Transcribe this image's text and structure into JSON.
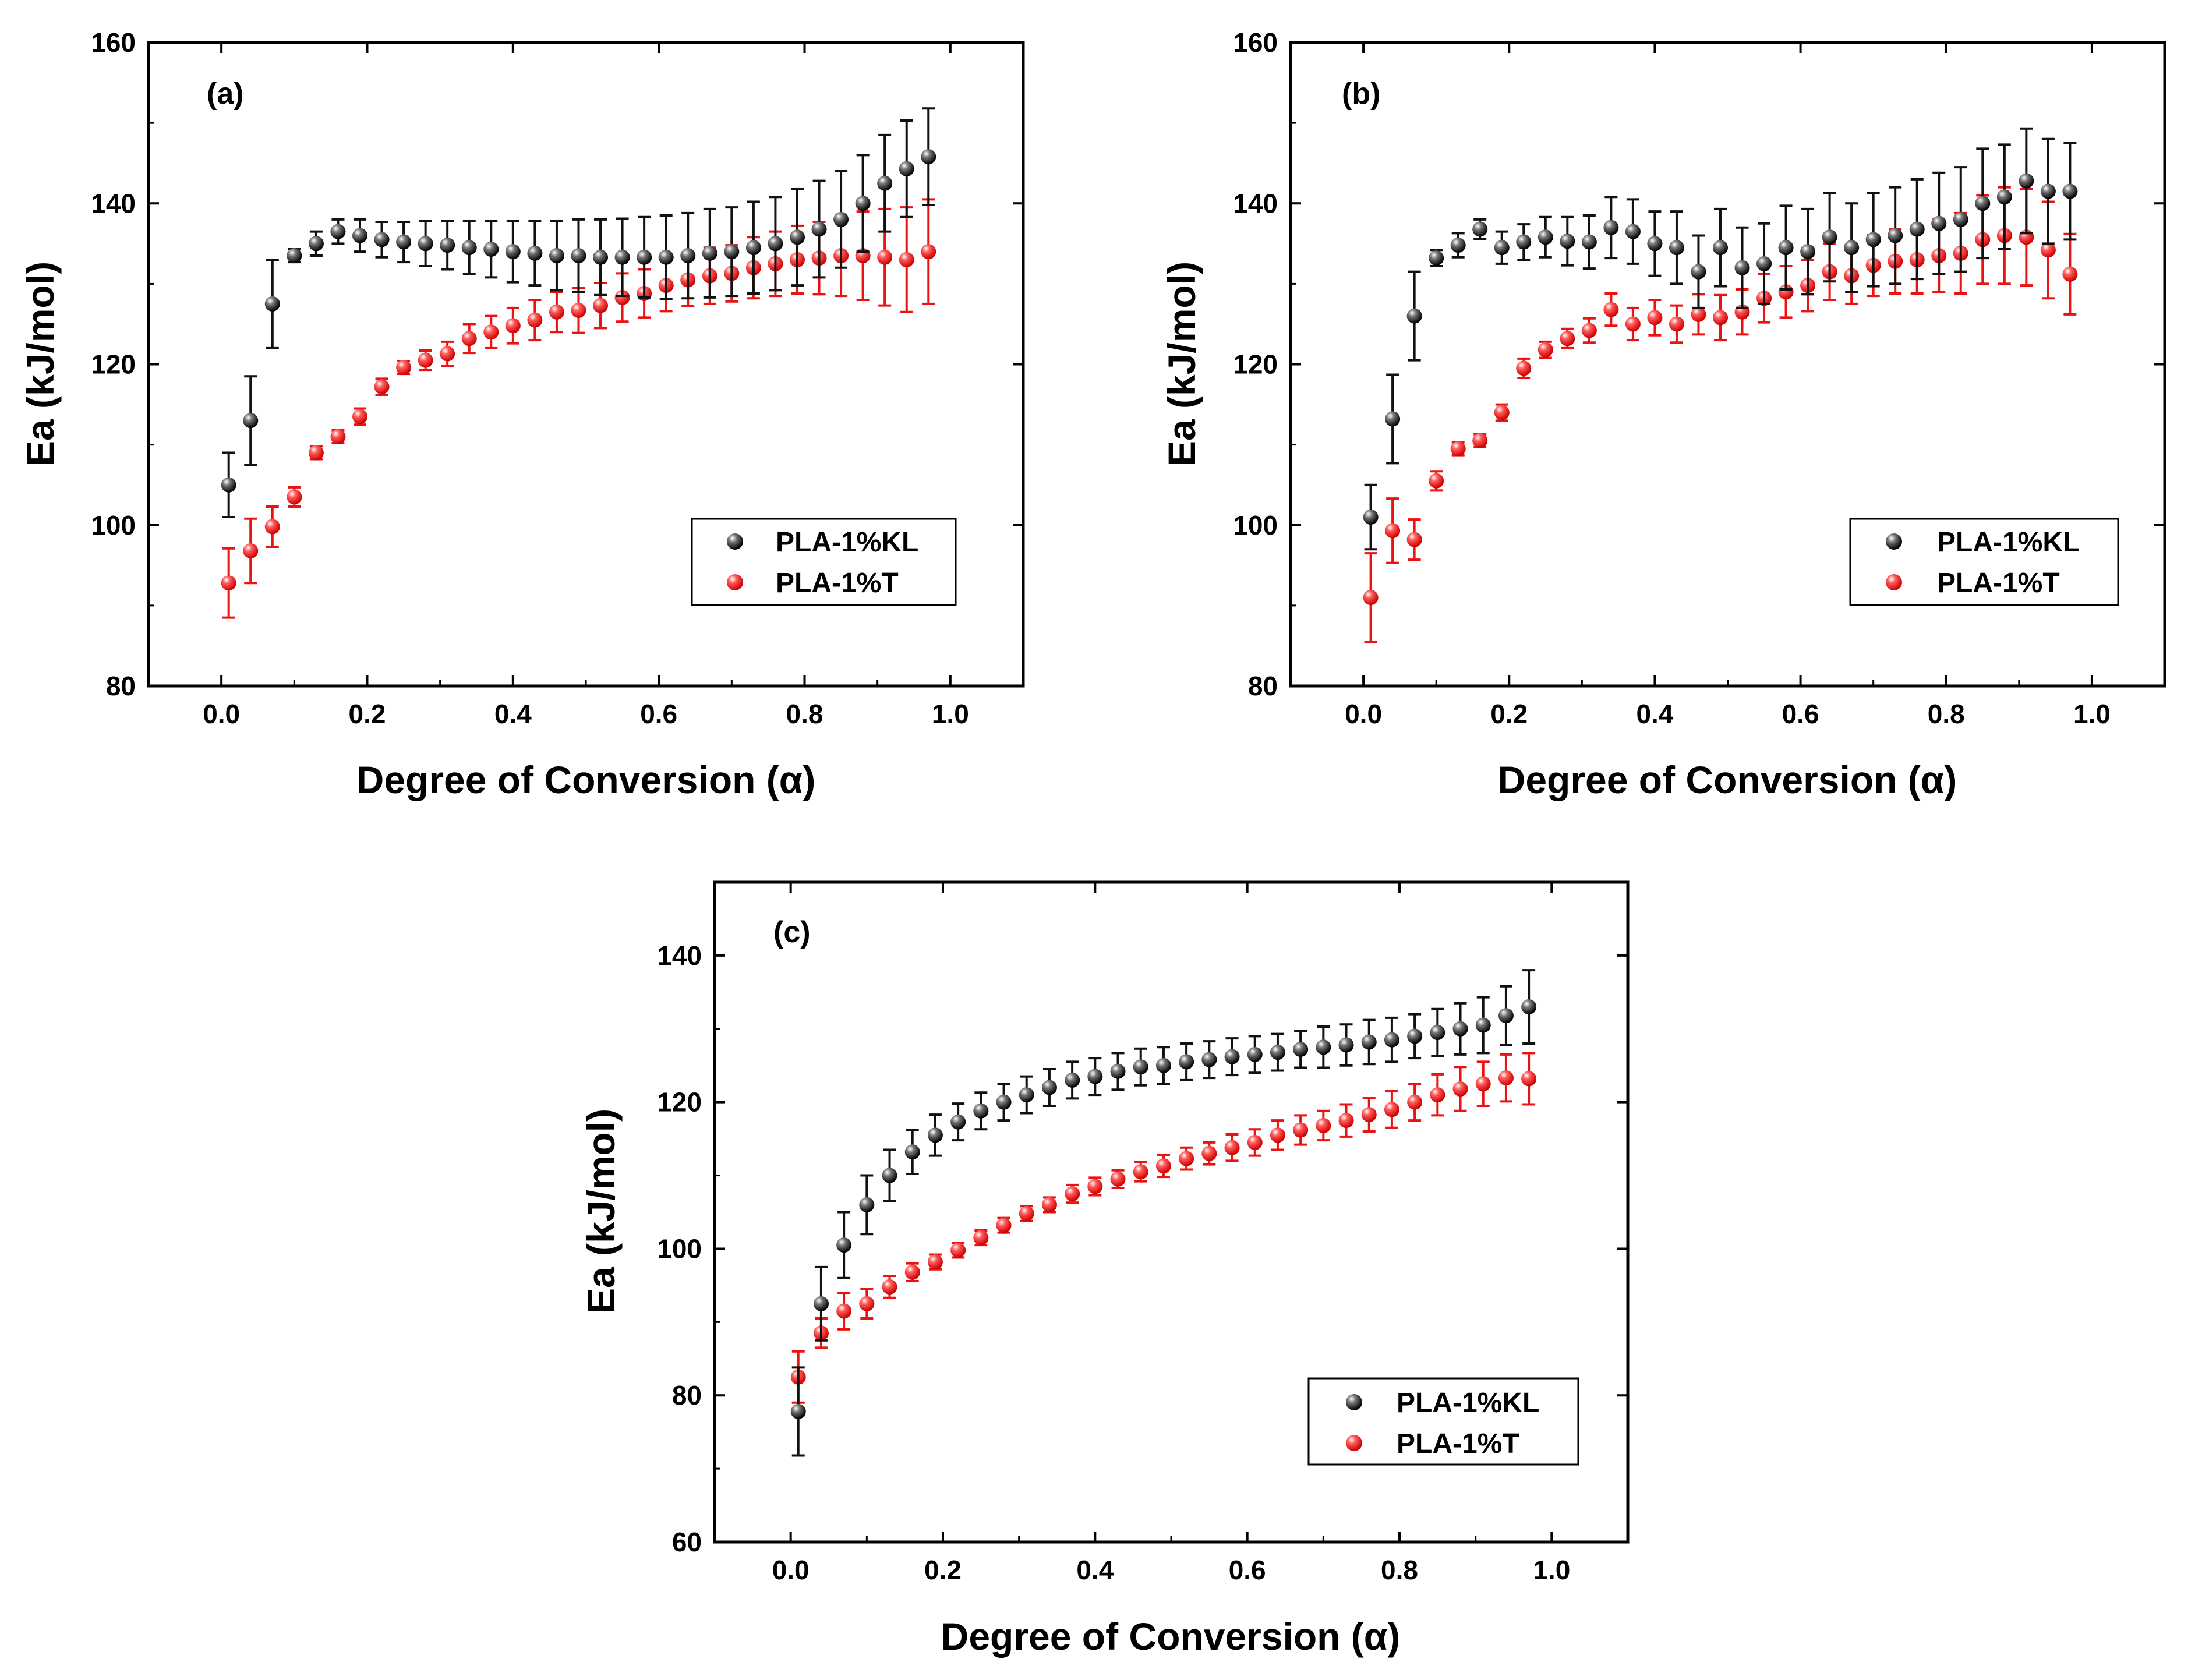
{
  "colors": {
    "series_black": "#111111",
    "series_red": "#ee1111",
    "axis": "#000000",
    "background": "#ffffff"
  },
  "chart_data": [
    {
      "type": "scatter",
      "panel_label": "(a)",
      "xlabel": "Degree of Conversion (α)",
      "ylabel": "Ea  (kJ/mol)",
      "xlim": [
        -0.1,
        1.1
      ],
      "ylim": [
        80,
        160
      ],
      "xticks": [
        "0.0",
        "0.2",
        "0.4",
        "0.6",
        "0.8",
        "1.0"
      ],
      "yticks": [
        "80",
        "100",
        "120",
        "140",
        "160"
      ],
      "legend_position": "bottom-right",
      "x": [
        0.01,
        0.04,
        0.07,
        0.1,
        0.13,
        0.16,
        0.19,
        0.22,
        0.25,
        0.28,
        0.31,
        0.34,
        0.37,
        0.4,
        0.43,
        0.46,
        0.49,
        0.52,
        0.55,
        0.58,
        0.61,
        0.64,
        0.67,
        0.7,
        0.73,
        0.76,
        0.79,
        0.82,
        0.85,
        0.88,
        0.91,
        0.94,
        0.97
      ],
      "series": [
        {
          "name": "PLA-1%KL",
          "color": "#111111",
          "values": [
            105.0,
            113.0,
            127.5,
            133.5,
            135.0,
            136.5,
            136.0,
            135.5,
            135.2,
            135.0,
            134.8,
            134.5,
            134.3,
            134.0,
            133.8,
            133.5,
            133.5,
            133.3,
            133.3,
            133.3,
            133.3,
            133.5,
            133.8,
            134.0,
            134.5,
            135.0,
            135.8,
            136.8,
            138.0,
            140.0,
            142.5,
            144.3,
            145.8
          ],
          "errors": [
            4.0,
            5.5,
            5.5,
            0.8,
            1.5,
            1.5,
            2.0,
            2.2,
            2.5,
            2.8,
            3.0,
            3.3,
            3.5,
            3.8,
            4.0,
            4.3,
            4.5,
            4.7,
            4.8,
            5.0,
            5.2,
            5.3,
            5.5,
            5.5,
            5.7,
            5.8,
            6.0,
            6.0,
            6.0,
            6.0,
            6.0,
            6.0,
            6.0
          ]
        },
        {
          "name": "PLA-1%T",
          "color": "#ee1111",
          "values": [
            92.8,
            96.8,
            99.8,
            103.5,
            109.0,
            111.0,
            113.5,
            117.2,
            119.6,
            120.5,
            121.3,
            123.2,
            124.0,
            124.8,
            125.5,
            126.5,
            126.7,
            127.3,
            128.3,
            128.8,
            129.8,
            130.5,
            131.0,
            131.3,
            132.0,
            132.5,
            133.0,
            133.2,
            133.5,
            133.5,
            133.3,
            133.0,
            134.0
          ],
          "errors": [
            4.3,
            4.0,
            2.5,
            1.2,
            0.8,
            0.8,
            1.0,
            1.0,
            0.8,
            1.2,
            1.5,
            1.8,
            2.0,
            2.2,
            2.5,
            2.5,
            2.8,
            2.8,
            3.0,
            3.0,
            3.2,
            3.3,
            3.5,
            3.5,
            3.8,
            4.0,
            4.2,
            4.5,
            5.0,
            5.5,
            6.0,
            6.5,
            6.5
          ]
        }
      ]
    },
    {
      "type": "scatter",
      "panel_label": "(b)",
      "xlabel": "Degree of Conversion (α)",
      "ylabel": "Ea (kJ/mol)",
      "xlim": [
        -0.1,
        1.1
      ],
      "ylim": [
        80,
        160
      ],
      "xticks": [
        "0.0",
        "0.2",
        "0.4",
        "0.6",
        "0.8",
        "1.0"
      ],
      "yticks": [
        "80",
        "100",
        "120",
        "140",
        "160"
      ],
      "legend_position": "bottom-right",
      "x": [
        0.01,
        0.04,
        0.07,
        0.1,
        0.13,
        0.16,
        0.19,
        0.22,
        0.25,
        0.28,
        0.31,
        0.34,
        0.37,
        0.4,
        0.43,
        0.46,
        0.49,
        0.52,
        0.55,
        0.58,
        0.61,
        0.64,
        0.67,
        0.7,
        0.73,
        0.76,
        0.79,
        0.82,
        0.85,
        0.88,
        0.91,
        0.94,
        0.97
      ],
      "series": [
        {
          "name": "PLA-1%KL",
          "color": "#111111",
          "values": [
            101.0,
            113.2,
            126.0,
            133.2,
            134.8,
            136.8,
            134.5,
            135.2,
            135.8,
            135.3,
            135.2,
            137.0,
            136.5,
            135.0,
            134.5,
            131.5,
            134.5,
            132.0,
            132.5,
            134.5,
            134.0,
            135.8,
            134.5,
            135.5,
            136.0,
            136.8,
            137.5,
            138.0,
            140.0,
            140.8,
            142.8,
            141.5,
            141.5
          ],
          "errors": [
            4.0,
            5.5,
            5.5,
            1.0,
            1.5,
            1.2,
            2.0,
            2.2,
            2.5,
            3.0,
            3.3,
            3.8,
            4.0,
            4.0,
            4.5,
            4.5,
            4.8,
            5.0,
            5.0,
            5.2,
            5.3,
            5.5,
            5.5,
            5.8,
            6.0,
            6.2,
            6.3,
            6.5,
            6.8,
            6.5,
            6.5,
            6.5,
            6.0
          ]
        },
        {
          "name": "PLA-1%T",
          "color": "#ee1111",
          "values": [
            91.0,
            99.3,
            98.2,
            105.5,
            109.5,
            110.5,
            114.0,
            119.5,
            121.8,
            123.2,
            124.2,
            126.8,
            125.0,
            125.8,
            125.0,
            126.2,
            125.8,
            126.5,
            128.2,
            129.0,
            129.8,
            131.5,
            131.0,
            132.3,
            132.8,
            133.0,
            133.5,
            133.8,
            135.5,
            136.0,
            135.8,
            134.2,
            131.2
          ],
          "errors": [
            5.5,
            4.0,
            2.5,
            1.2,
            0.8,
            0.8,
            1.0,
            1.2,
            1.0,
            1.2,
            1.5,
            2.0,
            2.0,
            2.2,
            2.3,
            2.5,
            2.8,
            2.8,
            3.0,
            3.2,
            3.2,
            3.5,
            3.5,
            3.8,
            4.0,
            4.2,
            4.5,
            5.0,
            5.5,
            6.0,
            6.0,
            6.0,
            5.0
          ]
        }
      ]
    },
    {
      "type": "scatter",
      "panel_label": "(c)",
      "xlabel": "Degree of Conversion (α)",
      "ylabel": "Ea (kJ/mol)",
      "xlim": [
        -0.1,
        1.1
      ],
      "ylim": [
        60,
        150
      ],
      "xticks": [
        "0.0",
        "0.2",
        "0.4",
        "0.6",
        "0.8",
        "1.0"
      ],
      "yticks": [
        "60",
        "80",
        "100",
        "120",
        "140"
      ],
      "legend_position": "bottom-right",
      "x": [
        0.01,
        0.04,
        0.07,
        0.1,
        0.13,
        0.16,
        0.19,
        0.22,
        0.25,
        0.28,
        0.31,
        0.34,
        0.37,
        0.4,
        0.43,
        0.46,
        0.49,
        0.52,
        0.55,
        0.58,
        0.61,
        0.64,
        0.67,
        0.7,
        0.73,
        0.76,
        0.79,
        0.82,
        0.85,
        0.88,
        0.91,
        0.94,
        0.97
      ],
      "series": [
        {
          "name": "PLA-1%KL",
          "color": "#111111",
          "values": [
            77.8,
            92.5,
            100.5,
            106.0,
            110.0,
            113.2,
            115.5,
            117.3,
            118.8,
            120.0,
            121.0,
            122.0,
            123.0,
            123.5,
            124.2,
            124.8,
            125.0,
            125.5,
            125.8,
            126.2,
            126.5,
            126.8,
            127.2,
            127.5,
            127.8,
            128.2,
            128.5,
            129.0,
            129.5,
            130.0,
            130.5,
            131.8,
            133.0
          ],
          "errors": [
            6.0,
            5.0,
            4.5,
            4.0,
            3.5,
            3.0,
            2.8,
            2.5,
            2.5,
            2.5,
            2.5,
            2.5,
            2.5,
            2.5,
            2.5,
            2.5,
            2.5,
            2.5,
            2.5,
            2.5,
            2.5,
            2.5,
            2.5,
            2.8,
            2.8,
            3.0,
            3.0,
            3.0,
            3.2,
            3.5,
            3.8,
            4.0,
            5.0
          ]
        },
        {
          "name": "PLA-1%T",
          "color": "#ee1111",
          "values": [
            82.5,
            88.5,
            91.5,
            92.5,
            94.8,
            96.8,
            98.2,
            99.8,
            101.5,
            103.2,
            104.8,
            106.0,
            107.5,
            108.5,
            109.5,
            110.5,
            111.3,
            112.3,
            113.0,
            113.8,
            114.5,
            115.5,
            116.2,
            116.8,
            117.5,
            118.3,
            119.0,
            120.0,
            121.0,
            121.8,
            122.5,
            123.3,
            123.2
          ],
          "errors": [
            3.5,
            2.0,
            2.5,
            2.0,
            1.5,
            1.2,
            1.0,
            1.0,
            1.0,
            1.0,
            1.0,
            1.0,
            1.2,
            1.2,
            1.2,
            1.3,
            1.5,
            1.5,
            1.5,
            1.8,
            1.8,
            2.0,
            2.0,
            2.0,
            2.2,
            2.3,
            2.5,
            2.5,
            2.8,
            3.0,
            3.0,
            3.2,
            3.5
          ]
        }
      ]
    }
  ]
}
